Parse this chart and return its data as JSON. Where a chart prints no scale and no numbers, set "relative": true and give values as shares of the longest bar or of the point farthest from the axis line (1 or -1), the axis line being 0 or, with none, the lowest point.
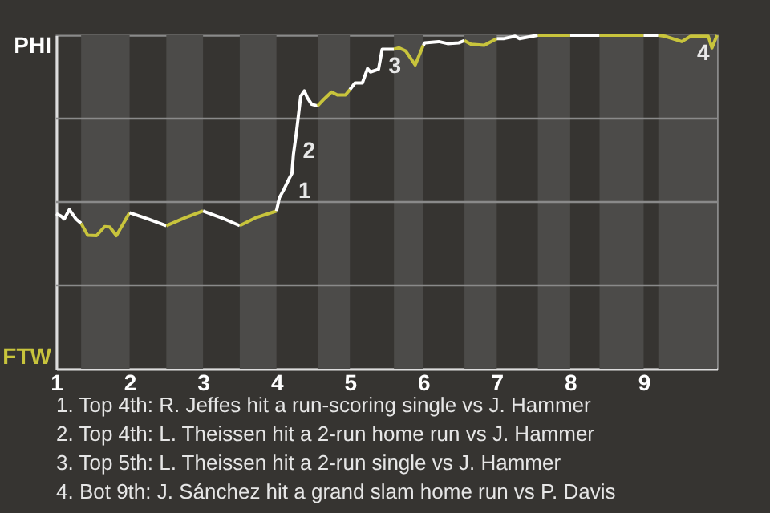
{
  "chart_data": {
    "type": "line",
    "relative": true,
    "grid": "y",
    "series": [
      {
        "name": "PHI",
        "color": "#ffffff",
        "x": [
          1.0,
          1.07,
          1.11,
          1.18,
          1.27,
          1.34
        ],
        "values": [
          0.465,
          0.457,
          0.449,
          0.477,
          0.449,
          0.436
        ]
      },
      {
        "name": "FTW",
        "color": "#c8c43c",
        "x": [
          1.34,
          1.43,
          1.55,
          1.66,
          1.73,
          1.82,
          2.0
        ],
        "values": [
          0.436,
          0.4,
          0.399,
          0.426,
          0.425,
          0.399,
          0.468
        ]
      },
      {
        "color": "#ffffff",
        "x": [
          2.0,
          2.25,
          2.5
        ],
        "values": [
          0.468,
          0.449,
          0.429
        ]
      },
      {
        "color": "#c8c43c",
        "x": [
          2.5,
          2.75,
          3.0
        ],
        "values": [
          0.429,
          0.452,
          0.473
        ]
      },
      {
        "color": "#ffffff",
        "x": [
          3.0,
          3.29,
          3.5
        ],
        "values": [
          0.473,
          0.449,
          0.429
        ]
      },
      {
        "color": "#c8c43c",
        "x": [
          3.5,
          3.71,
          4.0
        ],
        "values": [
          0.429,
          0.452,
          0.473
        ]
      },
      {
        "color": "#ffffff",
        "x": [
          4.0,
          4.04,
          4.1,
          4.17,
          4.21,
          4.23,
          4.27,
          4.33,
          4.38,
          4.42,
          4.48,
          4.56
        ],
        "values": [
          0.473,
          0.513,
          0.537,
          0.569,
          0.585,
          0.641,
          0.705,
          0.817,
          0.833,
          0.813,
          0.793,
          0.788
        ]
      },
      {
        "color": "#c8c43c",
        "x": [
          4.56,
          4.65,
          4.75,
          4.83,
          4.94,
          5.0
        ],
        "values": [
          0.788,
          0.809,
          0.83,
          0.821,
          0.821,
          0.837
        ]
      },
      {
        "color": "#ffffff",
        "x": [
          5.0,
          5.07,
          5.17,
          5.24,
          5.28,
          5.39,
          5.44,
          5.6
        ],
        "values": [
          0.837,
          0.857,
          0.857,
          0.9,
          0.89,
          0.898,
          0.958,
          0.958
        ]
      },
      {
        "color": "#c8c43c",
        "x": [
          5.6,
          5.67,
          5.76,
          5.89,
          6.0
        ],
        "values": [
          0.958,
          0.962,
          0.953,
          0.911,
          0.97
        ]
      },
      {
        "color": "#ffffff",
        "x": [
          6.0,
          6.02,
          6.21,
          6.33,
          6.48,
          6.56
        ],
        "values": [
          0.97,
          0.977,
          0.981,
          0.975,
          0.977,
          0.984
        ]
      },
      {
        "color": "#c8c43c",
        "x": [
          6.56,
          6.65,
          6.83,
          7.0
        ],
        "values": [
          0.984,
          0.973,
          0.97,
          0.99
        ]
      },
      {
        "color": "#ffffff",
        "x": [
          7.0,
          7.1,
          7.25,
          7.31,
          7.56
        ],
        "values": [
          0.99,
          0.99,
          0.997,
          0.99,
          1.0
        ]
      },
      {
        "color": "#c8c43c",
        "x": [
          7.56,
          8.0
        ],
        "values": [
          1.0,
          1.0
        ]
      },
      {
        "color": "#ffffff",
        "x": [
          8.0,
          8.4
        ],
        "values": [
          1.0,
          1.0
        ]
      },
      {
        "color": "#c8c43c",
        "x": [
          8.4,
          9.0
        ],
        "values": [
          1.0,
          1.0
        ]
      },
      {
        "color": "#ffffff",
        "x": [
          9.0,
          9.2
        ],
        "values": [
          1.0,
          1.0
        ]
      },
      {
        "color": "#c8c43c",
        "x": [
          9.2,
          9.29,
          9.52,
          9.64,
          9.88,
          9.93,
          10.0
        ],
        "values": [
          1.0,
          0.997,
          0.981,
          0.997,
          0.997,
          0.962,
          1.0
        ]
      }
    ],
    "xlim": [
      1,
      10
    ],
    "xticks": [
      1,
      2,
      3,
      4,
      5,
      6,
      7,
      8,
      9
    ],
    "bands": [
      {
        "axis": "x",
        "from": 1.34,
        "to": 2.0,
        "color": "#4c4b49"
      },
      {
        "axis": "x",
        "from": 2.5,
        "to": 3.0,
        "color": "#4c4b49"
      },
      {
        "axis": "x",
        "from": 3.5,
        "to": 4.0,
        "color": "#4c4b49"
      },
      {
        "axis": "x",
        "from": 4.56,
        "to": 5.0,
        "color": "#4c4b49"
      },
      {
        "axis": "x",
        "from": 5.6,
        "to": 6.0,
        "color": "#4c4b49"
      },
      {
        "axis": "x",
        "from": 6.56,
        "to": 7.0,
        "color": "#4c4b49"
      },
      {
        "axis": "x",
        "from": 7.56,
        "to": 8.0,
        "color": "#4c4b49"
      },
      {
        "axis": "x",
        "from": 8.4,
        "to": 9.0,
        "color": "#4c4b49"
      },
      {
        "axis": "x",
        "from": 9.2,
        "to": 10.0,
        "color": "#4c4b49"
      }
    ],
    "annotations": [
      {
        "text": "1",
        "x": 4.21,
        "y": 0.585
      },
      {
        "text": "2",
        "x": 4.27,
        "y": 0.705
      },
      {
        "text": "3",
        "x": 5.44,
        "y": 0.958
      },
      {
        "text": "4",
        "x": 9.64,
        "y": 0.997
      },
      "1. Top 4th: R. Jeffes hit a run-scoring single vs J. Hammer",
      "2. Top 4th: L. Theissen hit a 2-run home run vs J. Hammer",
      "3. Top 5th: L. Theissen hit a 2-run single vs J. Hammer",
      "4. Bot 9th: J. Sánchez hit a grand slam home run vs P. Davis"
    ]
  }
}
